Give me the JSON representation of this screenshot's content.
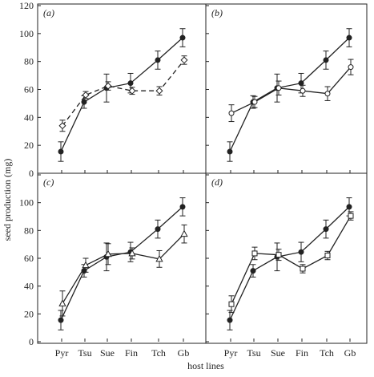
{
  "figure": {
    "ylabel": "seed production (mg)",
    "xlabel": "host lines"
  },
  "colors": {
    "ink": "#222222",
    "open_fill": "#ffffff"
  },
  "chart_data": [
    {
      "type": "line",
      "panel": "(a)",
      "categories": [
        "Pyr",
        "Tsu",
        "Sue",
        "Fin",
        "Tch",
        "Gb"
      ],
      "ylim": [
        0,
        120
      ],
      "yticks": [
        0,
        20,
        40,
        60,
        80,
        100,
        120
      ],
      "grid": false,
      "series": [
        {
          "marker": "filled-circle",
          "line": "solid",
          "values": [
            15.5,
            51.0,
            61.0,
            64.5,
            81.0,
            97.0
          ],
          "errors": [
            7.0,
            4.5,
            10.0,
            7.0,
            6.5,
            6.5
          ]
        },
        {
          "marker": "open-diamond",
          "line": "dashed",
          "values": [
            34.0,
            56.0,
            62.5,
            59.0,
            59.0,
            81.0
          ],
          "errors": [
            4.0,
            2.5,
            3.0,
            2.5,
            3.0,
            3.0
          ]
        }
      ]
    },
    {
      "type": "line",
      "panel": "(b)",
      "categories": [
        "Pyr",
        "Tsu",
        "Sue",
        "Fin",
        "Tch",
        "Gb"
      ],
      "ylim": [
        0,
        120
      ],
      "yticks": [
        0,
        20,
        40,
        60,
        80,
        100,
        120
      ],
      "grid": false,
      "series": [
        {
          "marker": "filled-circle",
          "line": "solid",
          "values": [
            15.5,
            51.0,
            61.0,
            64.5,
            81.0,
            97.0
          ],
          "errors": [
            7.0,
            4.5,
            10.0,
            7.0,
            6.5,
            6.5
          ]
        },
        {
          "marker": "open-circle",
          "line": "solid",
          "values": [
            43.0,
            51.0,
            61.0,
            59.0,
            57.0,
            76.0
          ],
          "errors": [
            6.0,
            4.0,
            5.0,
            4.0,
            5.0,
            5.5
          ]
        }
      ]
    },
    {
      "type": "line",
      "panel": "(c)",
      "categories": [
        "Pyr",
        "Tsu",
        "Sue",
        "Fin",
        "Tch",
        "Gb"
      ],
      "ylim": [
        0,
        120
      ],
      "yticks": [
        0,
        20,
        40,
        60,
        80,
        100,
        120
      ],
      "grid": false,
      "series": [
        {
          "marker": "filled-circle",
          "line": "solid",
          "values": [
            15.5,
            51.0,
            61.0,
            64.5,
            81.0,
            97.0
          ],
          "errors": [
            7.0,
            4.5,
            10.0,
            7.0,
            6.5,
            6.5
          ]
        },
        {
          "marker": "open-triangle",
          "line": "solid",
          "values": [
            27.5,
            55.0,
            63.0,
            63.5,
            59.5,
            77.5
          ],
          "errors": [
            9.0,
            5.0,
            7.5,
            4.0,
            6.0,
            6.5
          ]
        }
      ]
    },
    {
      "type": "line",
      "panel": "(d)",
      "categories": [
        "Pyr",
        "Tsu",
        "Sue",
        "Fin",
        "Tch",
        "Gb"
      ],
      "ylim": [
        0,
        120
      ],
      "yticks": [
        0,
        20,
        40,
        60,
        80,
        100,
        120
      ],
      "grid": false,
      "series": [
        {
          "marker": "filled-circle",
          "line": "solid",
          "values": [
            15.5,
            51.0,
            61.0,
            64.5,
            81.0,
            97.0
          ],
          "errors": [
            7.0,
            4.5,
            10.0,
            7.0,
            6.5,
            6.5
          ]
        },
        {
          "marker": "open-square",
          "line": "solid",
          "values": [
            27.0,
            63.5,
            62.5,
            52.5,
            62.0,
            90.5
          ],
          "errors": [
            6.0,
            4.5,
            4.0,
            3.0,
            3.0,
            3.0
          ]
        }
      ]
    }
  ]
}
